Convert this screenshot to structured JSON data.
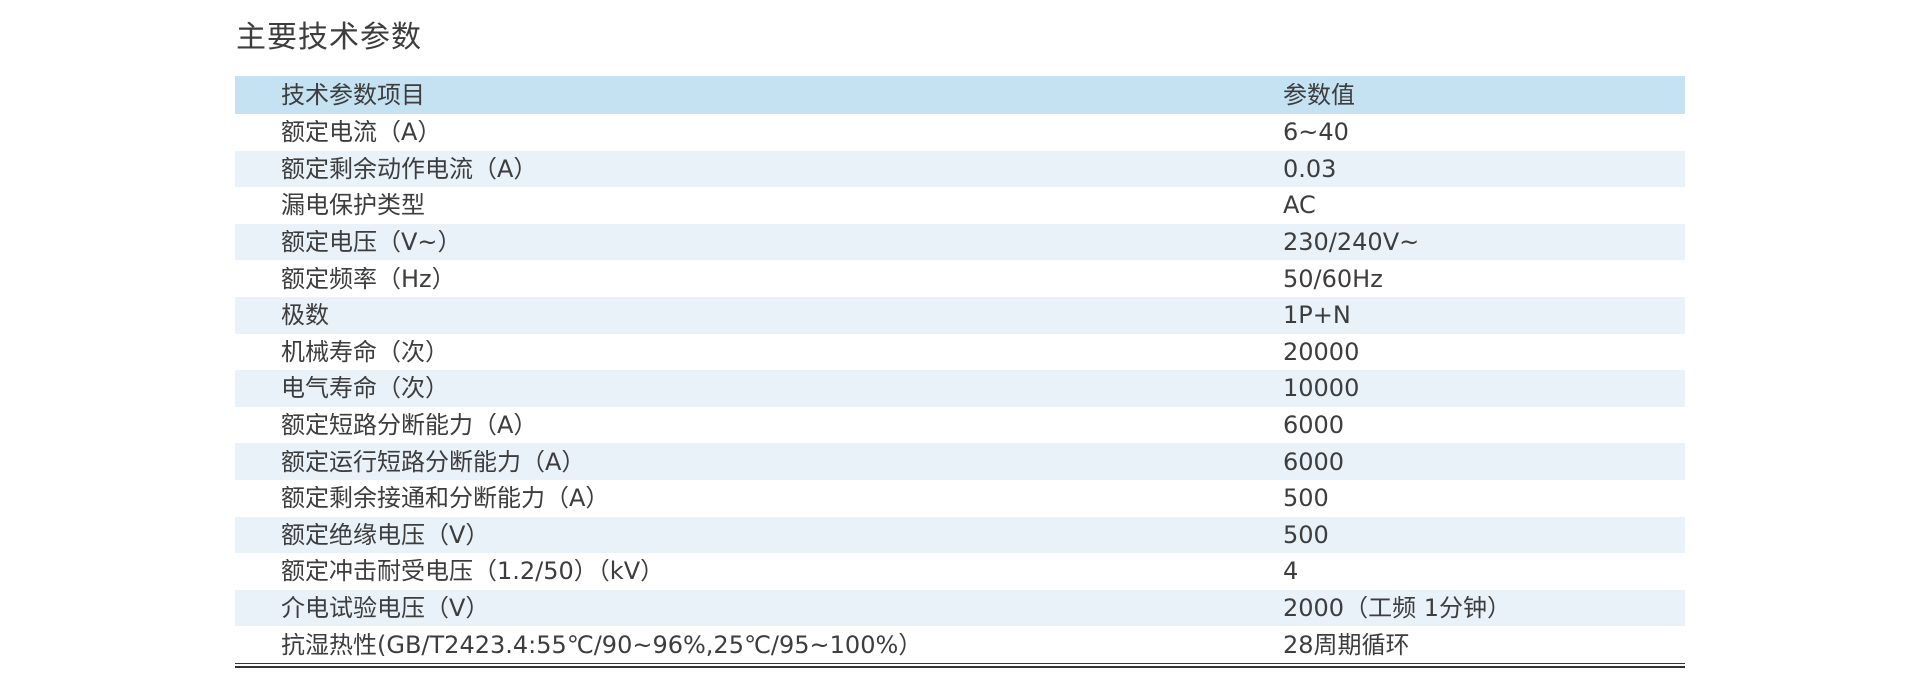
{
  "section": {
    "title": "主要技术参数"
  },
  "table": {
    "header": {
      "item": "技术参数项目",
      "value": "参数值"
    },
    "rows": [
      {
        "item": "额定电流（A）",
        "value": "6~40"
      },
      {
        "item": "额定剩余动作电流（A）",
        "value": "0.03"
      },
      {
        "item": "漏电保护类型",
        "value": "AC"
      },
      {
        "item": "额定电压（V~）",
        "value": "230/240V~"
      },
      {
        "item": "额定频率（Hz）",
        "value": "50/60Hz"
      },
      {
        "item": "极数",
        "value": "1P+N"
      },
      {
        "item": "机械寿命（次）",
        "value": "20000"
      },
      {
        "item": "电气寿命（次）",
        "value": "10000"
      },
      {
        "item": "额定短路分断能力（A）",
        "value": "6000"
      },
      {
        "item": "额定运行短路分断能力（A）",
        "value": "6000"
      },
      {
        "item": "额定剩余接通和分断能力（A）",
        "value": "500"
      },
      {
        "item": "额定绝缘电压（V）",
        "value": "500"
      },
      {
        "item": "额定冲击耐受电压（1.2/50）（kV）",
        "value": "4"
      },
      {
        "item": "介电试验电压（V）",
        "value": "2000（工频 1分钟）"
      },
      {
        "item": "抗湿热性(GB/T2423.4:55℃/90~96%,25℃/95~100%）",
        "value": "28周期循环"
      }
    ],
    "colors": {
      "header_bg": "#c5e2f3",
      "alt_row_bg": "#e9f1f9",
      "text": "#3d3d3d",
      "rule": "#3a3132"
    }
  }
}
